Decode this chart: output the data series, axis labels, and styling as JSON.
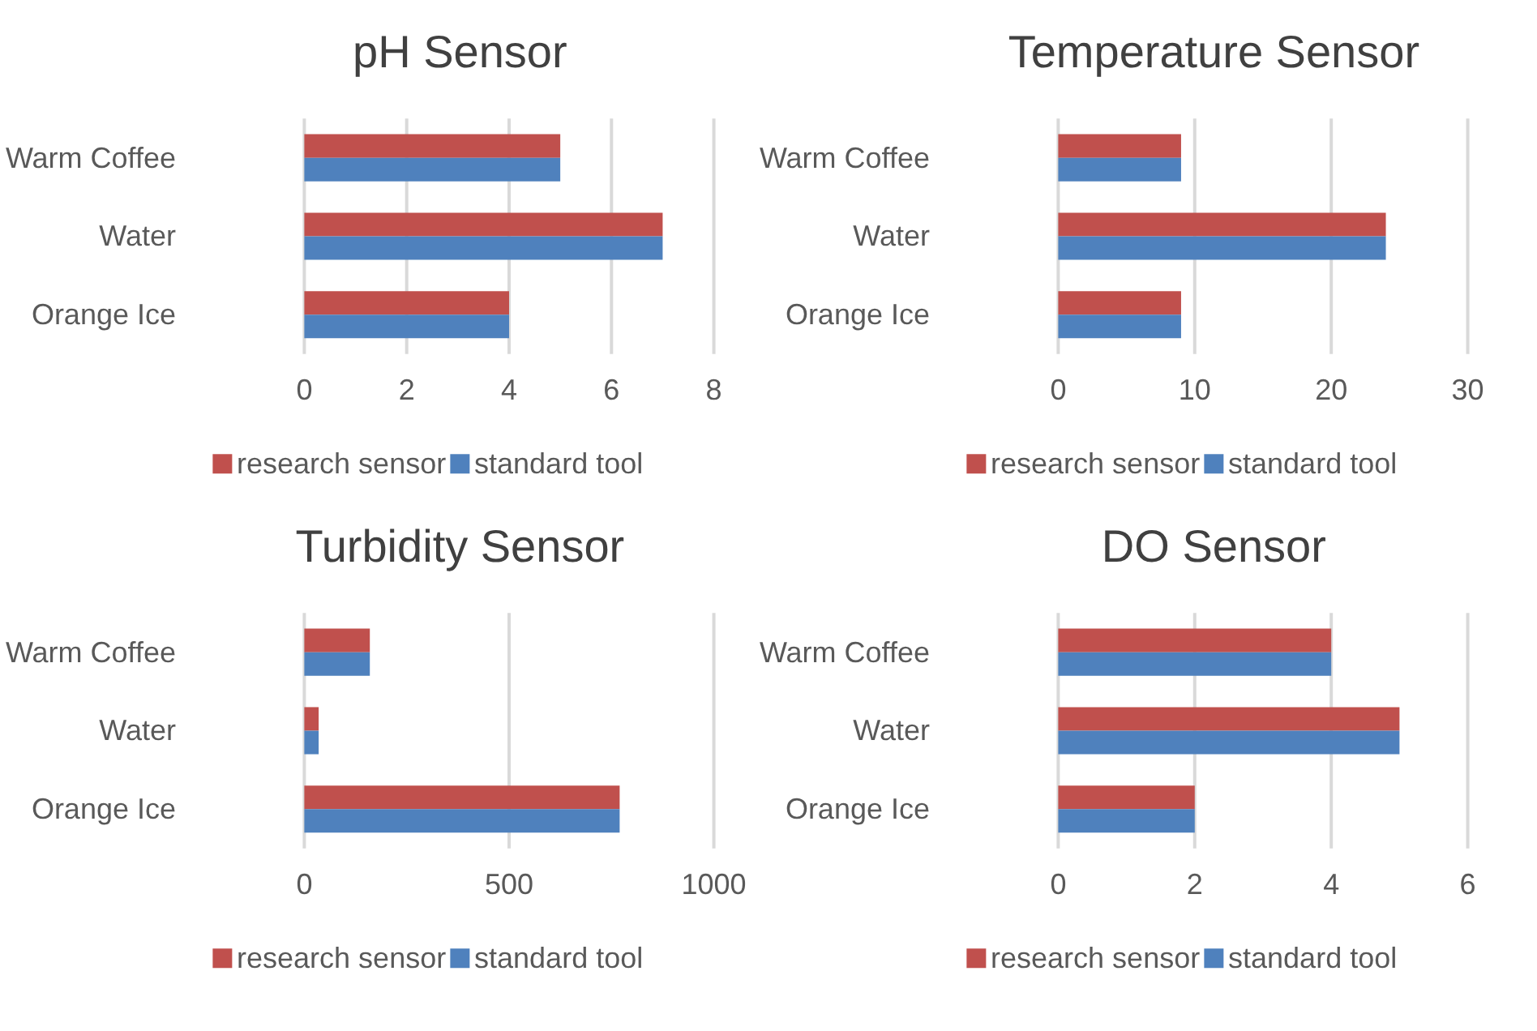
{
  "chart_data": [
    {
      "type": "bar",
      "orientation": "horizontal",
      "title": "pH Sensor",
      "categories": [
        "Warm Coffee",
        "Water",
        "Orange Ice"
      ],
      "series": [
        {
          "name": "research sensor",
          "color": "#c0504d",
          "values": [
            5,
            7,
            4
          ]
        },
        {
          "name": "standard tool",
          "color": "#4f81bd",
          "values": [
            5,
            7,
            4
          ]
        }
      ],
      "xlim": [
        0,
        8
      ],
      "xticks": [
        0,
        2,
        4,
        6,
        8
      ],
      "grid": "x",
      "legend": "bottom"
    },
    {
      "type": "bar",
      "orientation": "horizontal",
      "title": "Temperature Sensor",
      "categories": [
        "Warm Coffee",
        "Water",
        "Orange Ice"
      ],
      "series": [
        {
          "name": "research sensor",
          "color": "#c0504d",
          "values": [
            9,
            24,
            9
          ]
        },
        {
          "name": "standard tool",
          "color": "#4f81bd",
          "values": [
            9,
            24,
            9
          ]
        }
      ],
      "xlim": [
        0,
        30
      ],
      "xticks": [
        0,
        10,
        20,
        30
      ],
      "grid": "x",
      "legend": "bottom"
    },
    {
      "type": "bar",
      "orientation": "horizontal",
      "title": "Turbidity Sensor",
      "categories": [
        "Warm Coffee",
        "Water",
        "Orange Ice"
      ],
      "series": [
        {
          "name": "research sensor",
          "color": "#c0504d",
          "values": [
            160,
            35,
            770
          ]
        },
        {
          "name": "standard tool",
          "color": "#4f81bd",
          "values": [
            160,
            35,
            770
          ]
        }
      ],
      "xlim": [
        0,
        1000
      ],
      "xticks": [
        0,
        500,
        1000
      ],
      "grid": "x",
      "legend": "bottom"
    },
    {
      "type": "bar",
      "orientation": "horizontal",
      "title": "DO Sensor",
      "categories": [
        "Warm Coffee",
        "Water",
        "Orange Ice"
      ],
      "series": [
        {
          "name": "research sensor",
          "color": "#c0504d",
          "values": [
            4,
            5,
            2
          ]
        },
        {
          "name": "standard tool",
          "color": "#4f81bd",
          "values": [
            4,
            5,
            2
          ]
        }
      ],
      "xlim": [
        0,
        6
      ],
      "xticks": [
        0,
        2,
        4,
        6
      ],
      "grid": "x",
      "legend": "bottom"
    }
  ]
}
